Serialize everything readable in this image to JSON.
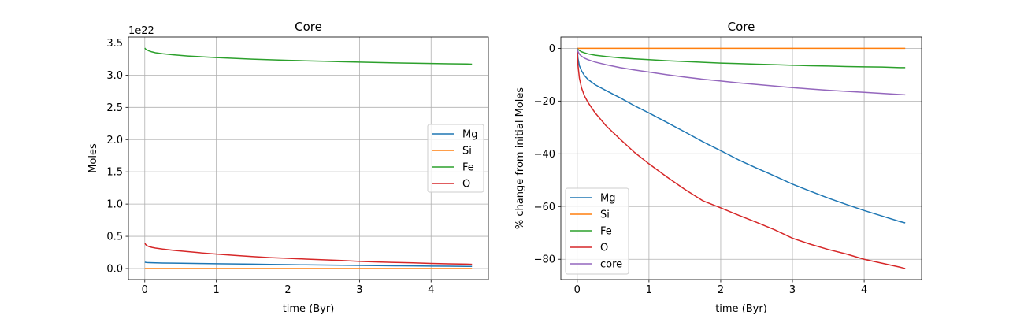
{
  "chart_data": [
    {
      "type": "line",
      "title": "Core",
      "xlabel": "time (Byr)",
      "ylabel": "Moles",
      "offset_text": "1e22",
      "scale": 1e+22,
      "xlim": [
        -0.2286,
        4.8006
      ],
      "ylim": [
        -0.171,
        3.591
      ],
      "xticks": [
        0,
        1,
        2,
        3,
        4
      ],
      "xtick_labels": [
        "0",
        "1",
        "2",
        "3",
        "4"
      ],
      "yticks": [
        0.0,
        0.5,
        1.0,
        1.5,
        2.0,
        2.5,
        3.0,
        3.5
      ],
      "ytick_labels": [
        "0.0",
        "0.5",
        "1.0",
        "1.5",
        "2.0",
        "2.5",
        "3.0",
        "3.5"
      ],
      "grid": true,
      "legend_position": "center right",
      "x": [
        0,
        0.01,
        0.03,
        0.06,
        0.1,
        0.15,
        0.25,
        0.4,
        0.6,
        0.8,
        1.0,
        1.25,
        1.5,
        1.75,
        2.0,
        2.25,
        2.5,
        2.75,
        3.0,
        3.25,
        3.5,
        3.75,
        4.0,
        4.25,
        4.5,
        4.572
      ],
      "series": [
        {
          "name": "Mg",
          "color": "#1f77b4",
          "values": [
            0.1,
            0.0963,
            0.0934,
            0.0915,
            0.0897,
            0.0882,
            0.0862,
            0.084,
            0.0812,
            0.0782,
            0.0755,
            0.0719,
            0.0683,
            0.0646,
            0.0612,
            0.0577,
            0.0546,
            0.0516,
            0.0485,
            0.0458,
            0.0432,
            0.0408,
            0.0385,
            0.0364,
            0.0343,
            0.0338
          ]
        },
        {
          "name": "Si",
          "color": "#ff7f0e",
          "values": [
            0.0,
            0.0,
            0.0,
            0.0,
            0.0,
            0.0,
            0.0,
            0.0,
            0.0,
            0.0,
            0.0,
            0.0,
            0.0,
            0.0,
            0.0,
            0.0,
            0.0,
            0.0,
            0.0,
            0.0,
            0.0,
            0.0,
            0.0,
            0.0,
            0.0,
            0.0
          ]
        },
        {
          "name": "Fe",
          "color": "#2ca02c",
          "values": [
            3.42,
            3.405,
            3.391,
            3.375,
            3.36,
            3.347,
            3.331,
            3.314,
            3.297,
            3.284,
            3.272,
            3.259,
            3.248,
            3.238,
            3.229,
            3.222,
            3.215,
            3.208,
            3.201,
            3.195,
            3.19,
            3.185,
            3.18,
            3.176,
            3.172,
            3.17
          ]
        },
        {
          "name": "O",
          "color": "#d62728",
          "values": [
            0.4,
            0.375,
            0.355,
            0.34,
            0.328,
            0.318,
            0.302,
            0.283,
            0.262,
            0.242,
            0.225,
            0.205,
            0.186,
            0.169,
            0.158,
            0.147,
            0.136,
            0.125,
            0.112,
            0.103,
            0.095,
            0.088,
            0.08,
            0.074,
            0.068,
            0.066
          ]
        }
      ]
    },
    {
      "type": "line",
      "title": "Core",
      "xlabel": "time (Byr)",
      "ylabel": "% change from initial Moles",
      "xlim": [
        -0.2286,
        4.8006
      ],
      "ylim": [
        -87.7,
        4.3
      ],
      "xticks": [
        0,
        1,
        2,
        3,
        4
      ],
      "xtick_labels": [
        "0",
        "1",
        "2",
        "3",
        "4"
      ],
      "yticks": [
        0,
        -20,
        -40,
        -60,
        -80
      ],
      "ytick_labels": [
        "0",
        "−20",
        "−40",
        "−60",
        "−80"
      ],
      "grid": true,
      "legend_position": "lower left",
      "x": [
        0,
        0.01,
        0.03,
        0.06,
        0.1,
        0.15,
        0.25,
        0.4,
        0.6,
        0.8,
        1.0,
        1.25,
        1.5,
        1.75,
        2.0,
        2.25,
        2.5,
        2.75,
        3.0,
        3.25,
        3.5,
        3.75,
        4.0,
        4.25,
        4.5,
        4.572
      ],
      "series": [
        {
          "name": "Mg",
          "color": "#1f77b4",
          "values": [
            0,
            -3.7,
            -6.6,
            -8.5,
            -10.3,
            -11.8,
            -13.8,
            -16.0,
            -18.8,
            -21.8,
            -24.5,
            -28.1,
            -31.7,
            -35.4,
            -38.8,
            -42.3,
            -45.4,
            -48.4,
            -51.5,
            -54.2,
            -56.8,
            -59.2,
            -61.5,
            -63.6,
            -65.7,
            -66.2
          ]
        },
        {
          "name": "Si",
          "color": "#ff7f0e",
          "values": [
            0,
            0,
            0,
            0,
            0,
            0,
            0,
            0,
            0,
            0,
            0,
            0,
            0,
            0,
            0,
            0,
            0,
            0,
            0,
            0,
            0,
            0,
            0,
            0,
            0,
            0
          ]
        },
        {
          "name": "Fe",
          "color": "#2ca02c",
          "values": [
            0,
            -0.4,
            -0.8,
            -1.3,
            -1.7,
            -2.1,
            -2.6,
            -3.1,
            -3.6,
            -4.0,
            -4.3,
            -4.7,
            -5.0,
            -5.3,
            -5.6,
            -5.8,
            -6.0,
            -6.2,
            -6.4,
            -6.6,
            -6.7,
            -6.9,
            -7.0,
            -7.1,
            -7.3,
            -7.3
          ]
        },
        {
          "name": "O",
          "color": "#d62728",
          "values": [
            0,
            -6.3,
            -11.3,
            -15.0,
            -18.0,
            -20.5,
            -24.5,
            -29.3,
            -34.5,
            -39.5,
            -43.8,
            -48.8,
            -53.5,
            -57.8,
            -60.5,
            -63.3,
            -66.0,
            -68.8,
            -72.0,
            -74.3,
            -76.3,
            -78.0,
            -80.0,
            -81.5,
            -83.0,
            -83.5
          ]
        },
        {
          "name": "core",
          "color": "#9467bd",
          "values": [
            0,
            -1.2,
            -2.2,
            -3.0,
            -3.7,
            -4.3,
            -5.2,
            -6.2,
            -7.3,
            -8.2,
            -9.0,
            -10.0,
            -10.9,
            -11.7,
            -12.4,
            -13.1,
            -13.7,
            -14.3,
            -14.9,
            -15.4,
            -15.9,
            -16.3,
            -16.7,
            -17.1,
            -17.5,
            -17.6
          ]
        }
      ]
    }
  ]
}
